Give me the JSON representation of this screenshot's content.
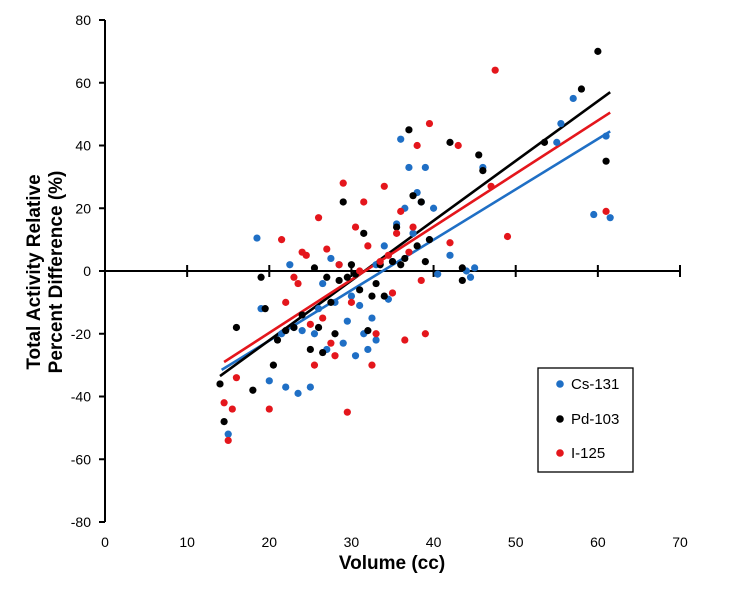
{
  "chart_data": {
    "type": "scatter",
    "title": "",
    "xlabel": "Volume (cc)",
    "ylabel_lines": [
      "Total Activity Relative",
      "Percent Difference (%)"
    ],
    "xlim": [
      0,
      70
    ],
    "ylim": [
      -80,
      80
    ],
    "xticks": [
      0,
      10,
      20,
      30,
      40,
      50,
      60,
      70
    ],
    "yticks": [
      -80,
      -60,
      -40,
      -20,
      0,
      20,
      40,
      60,
      80
    ],
    "legend_position": "bottom-right",
    "series": [
      {
        "name": "Cs-131",
        "color": "#1f6fc5",
        "trend": [
          [
            14.2,
            -31.5
          ],
          [
            61.5,
            44.5
          ]
        ],
        "points": [
          [
            15,
            -52
          ],
          [
            18.5,
            10.5
          ],
          [
            19,
            -12
          ],
          [
            20,
            -35
          ],
          [
            21.5,
            -20
          ],
          [
            22,
            -37
          ],
          [
            22.5,
            2
          ],
          [
            23,
            -18
          ],
          [
            23.5,
            -39
          ],
          [
            24,
            -19
          ],
          [
            25,
            -37
          ],
          [
            25.5,
            -20
          ],
          [
            26,
            -12
          ],
          [
            26.5,
            -4
          ],
          [
            27,
            -25
          ],
          [
            27.5,
            4
          ],
          [
            28,
            -10
          ],
          [
            28.5,
            2
          ],
          [
            29,
            -23
          ],
          [
            29.5,
            -16
          ],
          [
            30,
            -8
          ],
          [
            30.5,
            -27
          ],
          [
            31,
            -11
          ],
          [
            31.5,
            -20
          ],
          [
            32,
            -25
          ],
          [
            32.5,
            -15
          ],
          [
            33,
            -22
          ],
          [
            33,
            2
          ],
          [
            34,
            8
          ],
          [
            34.5,
            -9
          ],
          [
            35,
            3
          ],
          [
            35.5,
            15
          ],
          [
            36,
            42
          ],
          [
            36.5,
            20
          ],
          [
            37,
            33
          ],
          [
            37.5,
            12
          ],
          [
            38,
            25
          ],
          [
            38.5,
            22
          ],
          [
            39,
            33
          ],
          [
            39.5,
            10
          ],
          [
            40,
            20
          ],
          [
            40.5,
            -1
          ],
          [
            42,
            5
          ],
          [
            44,
            0
          ],
          [
            44.5,
            -2
          ],
          [
            45,
            1
          ],
          [
            46,
            33
          ],
          [
            55,
            41
          ],
          [
            55.5,
            47
          ],
          [
            57,
            55
          ],
          [
            59.5,
            18
          ],
          [
            61,
            43
          ],
          [
            61.5,
            17
          ]
        ]
      },
      {
        "name": "Pd-103",
        "color": "#000000",
        "trend": [
          [
            14.0,
            -33.5
          ],
          [
            61.5,
            57.0
          ]
        ],
        "points": [
          [
            14,
            -36
          ],
          [
            14.5,
            -48
          ],
          [
            16,
            -18
          ],
          [
            18,
            -38
          ],
          [
            19,
            -2
          ],
          [
            19.5,
            -12
          ],
          [
            20.5,
            -30
          ],
          [
            21,
            -22
          ],
          [
            22,
            -19
          ],
          [
            23,
            -18
          ],
          [
            24,
            -14
          ],
          [
            25,
            -25
          ],
          [
            25.5,
            1
          ],
          [
            26,
            -18
          ],
          [
            26.5,
            -26
          ],
          [
            27,
            -2
          ],
          [
            27.5,
            -10
          ],
          [
            28,
            -20
          ],
          [
            28.5,
            -3
          ],
          [
            29,
            22
          ],
          [
            29.5,
            -2
          ],
          [
            30,
            2
          ],
          [
            30.5,
            -1
          ],
          [
            31,
            -6
          ],
          [
            31.5,
            12
          ],
          [
            32,
            -19
          ],
          [
            32.5,
            -8
          ],
          [
            33,
            -4
          ],
          [
            33.5,
            2
          ],
          [
            34,
            -8
          ],
          [
            35,
            3
          ],
          [
            35.5,
            14
          ],
          [
            36,
            2
          ],
          [
            36.5,
            4
          ],
          [
            37,
            45
          ],
          [
            37.5,
            24
          ],
          [
            38,
            8
          ],
          [
            38.5,
            22
          ],
          [
            39,
            3
          ],
          [
            39.5,
            10
          ],
          [
            42,
            41
          ],
          [
            43.5,
            -3
          ],
          [
            43.5,
            1
          ],
          [
            45.5,
            37
          ],
          [
            46,
            32
          ],
          [
            53.5,
            41
          ],
          [
            58,
            58
          ],
          [
            60,
            70
          ],
          [
            61,
            35
          ]
        ]
      },
      {
        "name": "I-125",
        "color": "#e4161c",
        "trend": [
          [
            14.5,
            -29.0
          ],
          [
            61.5,
            50.5
          ]
        ],
        "points": [
          [
            14.5,
            -42
          ],
          [
            15,
            -54
          ],
          [
            15.5,
            -44
          ],
          [
            16,
            -34
          ],
          [
            20,
            -44
          ],
          [
            21.5,
            10
          ],
          [
            22,
            -10
          ],
          [
            23,
            -2
          ],
          [
            23.5,
            -4
          ],
          [
            24,
            6
          ],
          [
            24.5,
            5
          ],
          [
            25,
            -17
          ],
          [
            25.5,
            -30
          ],
          [
            26,
            17
          ],
          [
            26.5,
            -15
          ],
          [
            27,
            7
          ],
          [
            27.5,
            -23
          ],
          [
            28,
            -27
          ],
          [
            28.5,
            2
          ],
          [
            29,
            28
          ],
          [
            29.5,
            -45
          ],
          [
            30,
            -10
          ],
          [
            30.5,
            14
          ],
          [
            31,
            0
          ],
          [
            31.5,
            22
          ],
          [
            32,
            8
          ],
          [
            32.5,
            -30
          ],
          [
            33,
            -20
          ],
          [
            33.5,
            3
          ],
          [
            34,
            27
          ],
          [
            34.5,
            5
          ],
          [
            35,
            -7
          ],
          [
            35.5,
            12
          ],
          [
            36,
            19
          ],
          [
            36.5,
            -22
          ],
          [
            37,
            6
          ],
          [
            37.5,
            14
          ],
          [
            38,
            40
          ],
          [
            38.5,
            -3
          ],
          [
            39,
            -20
          ],
          [
            39.5,
            47
          ],
          [
            42,
            9
          ],
          [
            43,
            40
          ],
          [
            47,
            27
          ],
          [
            47.5,
            64
          ],
          [
            49,
            11
          ],
          [
            61,
            19
          ]
        ]
      }
    ]
  }
}
